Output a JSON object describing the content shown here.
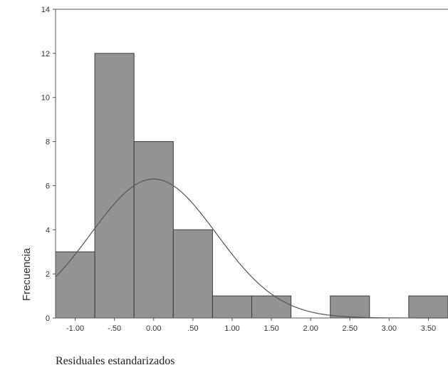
{
  "chart_data": {
    "type": "bar",
    "title": "",
    "xlabel": "Residuales estandarizados",
    "ylabel": "Frecuencia",
    "bin_width": 0.5,
    "bin_starts": [
      -1.25,
      -0.75,
      -0.25,
      0.25,
      0.75,
      1.25,
      1.75,
      2.25,
      2.75,
      3.25
    ],
    "values": [
      3,
      12,
      8,
      4,
      1,
      1,
      0,
      1,
      0,
      1
    ],
    "xlim": [
      -1.25,
      3.75
    ],
    "ylim": [
      0,
      14
    ],
    "x_ticks": [
      -1.0,
      -0.5,
      0.0,
      0.5,
      1.0,
      1.5,
      2.0,
      2.5,
      3.0,
      3.5
    ],
    "x_tick_labels": [
      "-1.00",
      "-.50",
      "0.00",
      ".50",
      "1.00",
      "1.50",
      "2.00",
      "2.50",
      "3.00",
      "3.50"
    ],
    "y_ticks": [
      0,
      2,
      4,
      6,
      8,
      10,
      12,
      14
    ],
    "y_tick_labels": [
      "0",
      "2",
      "4",
      "6",
      "8",
      "10",
      "12",
      "14"
    ],
    "normal_curve": {
      "mean": 0.0,
      "peak_frequency": 6.3,
      "sd": 0.8
    },
    "colors": {
      "bar_fill": "#939393",
      "bar_stroke": "#3a3a3a",
      "curve": "#555555",
      "axis": "#555555"
    }
  }
}
